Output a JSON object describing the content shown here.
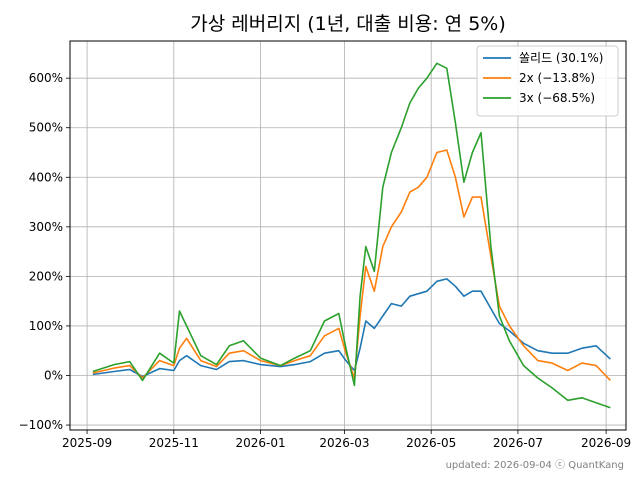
{
  "chart_data": {
    "type": "line",
    "title": "가상 레버리지 (1년, 대출 비용: 연 5%)",
    "xlabel": "",
    "ylabel": "",
    "footer": "updated: 2026-09-04 ⓒ QuantKang",
    "x_ticks": [
      "2025-09",
      "2025-11",
      "2026-01",
      "2026-03",
      "2026-05",
      "2026-07",
      "2026-09"
    ],
    "y_ticks": [
      "−100%",
      "0%",
      "100%",
      "200%",
      "300%",
      "400%",
      "500%",
      "600%"
    ],
    "y_tick_values": [
      -100,
      0,
      100,
      200,
      300,
      400,
      500,
      600
    ],
    "xlim": [
      "2025-08-20",
      "2026-09-15"
    ],
    "ylim": [
      -110,
      675
    ],
    "grid": true,
    "legend_position": "top-right",
    "series": [
      {
        "name": "쏠리드 (30.1%)",
        "color": "#1f77b4",
        "points": [
          [
            "2025-09-05",
            2
          ],
          [
            "2025-09-20",
            8
          ],
          [
            "2025-10-01",
            12
          ],
          [
            "2025-10-10",
            -2
          ],
          [
            "2025-10-22",
            14
          ],
          [
            "2025-11-01",
            10
          ],
          [
            "2025-11-05",
            30
          ],
          [
            "2025-11-10",
            40
          ],
          [
            "2025-11-20",
            20
          ],
          [
            "2025-12-01",
            12
          ],
          [
            "2025-12-10",
            28
          ],
          [
            "2025-12-20",
            30
          ],
          [
            "2026-01-01",
            22
          ],
          [
            "2026-01-15",
            18
          ],
          [
            "2026-01-25",
            22
          ],
          [
            "2026-02-05",
            28
          ],
          [
            "2026-02-15",
            45
          ],
          [
            "2026-02-25",
            50
          ],
          [
            "2026-03-02",
            30
          ],
          [
            "2026-03-08",
            10
          ],
          [
            "2026-03-12",
            55
          ],
          [
            "2026-03-16",
            110
          ],
          [
            "2026-03-22",
            95
          ],
          [
            "2026-03-28",
            120
          ],
          [
            "2026-04-03",
            145
          ],
          [
            "2026-04-10",
            140
          ],
          [
            "2026-04-16",
            160
          ],
          [
            "2026-04-22",
            165
          ],
          [
            "2026-04-28",
            170
          ],
          [
            "2026-05-05",
            190
          ],
          [
            "2026-05-12",
            195
          ],
          [
            "2026-05-18",
            180
          ],
          [
            "2026-05-24",
            160
          ],
          [
            "2026-05-30",
            170
          ],
          [
            "2026-06-05",
            170
          ],
          [
            "2026-06-12",
            135
          ],
          [
            "2026-06-18",
            105
          ],
          [
            "2026-06-25",
            90
          ],
          [
            "2026-07-05",
            65
          ],
          [
            "2026-07-15",
            50
          ],
          [
            "2026-07-25",
            45
          ],
          [
            "2026-08-05",
            45
          ],
          [
            "2026-08-15",
            55
          ],
          [
            "2026-08-25",
            60
          ],
          [
            "2026-09-04",
            33
          ]
        ]
      },
      {
        "name": "2x (−13.8%)",
        "color": "#ff7f0e",
        "points": [
          [
            "2025-09-05",
            5
          ],
          [
            "2025-09-20",
            15
          ],
          [
            "2025-10-01",
            20
          ],
          [
            "2025-10-10",
            -5
          ],
          [
            "2025-10-22",
            30
          ],
          [
            "2025-11-01",
            20
          ],
          [
            "2025-11-05",
            55
          ],
          [
            "2025-11-10",
            75
          ],
          [
            "2025-11-20",
            30
          ],
          [
            "2025-12-01",
            18
          ],
          [
            "2025-12-10",
            45
          ],
          [
            "2025-12-20",
            50
          ],
          [
            "2026-01-01",
            30
          ],
          [
            "2026-01-15",
            20
          ],
          [
            "2026-01-25",
            30
          ],
          [
            "2026-02-05",
            40
          ],
          [
            "2026-02-15",
            80
          ],
          [
            "2026-02-25",
            95
          ],
          [
            "2026-03-02",
            45
          ],
          [
            "2026-03-08",
            -5
          ],
          [
            "2026-03-12",
            120
          ],
          [
            "2026-03-16",
            220
          ],
          [
            "2026-03-22",
            170
          ],
          [
            "2026-03-28",
            260
          ],
          [
            "2026-04-03",
            300
          ],
          [
            "2026-04-10",
            330
          ],
          [
            "2026-04-16",
            370
          ],
          [
            "2026-04-22",
            380
          ],
          [
            "2026-04-28",
            400
          ],
          [
            "2026-05-05",
            450
          ],
          [
            "2026-05-12",
            455
          ],
          [
            "2026-05-18",
            400
          ],
          [
            "2026-05-24",
            320
          ],
          [
            "2026-05-30",
            360
          ],
          [
            "2026-06-05",
            360
          ],
          [
            "2026-06-12",
            240
          ],
          [
            "2026-06-18",
            140
          ],
          [
            "2026-06-25",
            100
          ],
          [
            "2026-07-05",
            60
          ],
          [
            "2026-07-15",
            30
          ],
          [
            "2026-07-25",
            25
          ],
          [
            "2026-08-05",
            10
          ],
          [
            "2026-08-15",
            25
          ],
          [
            "2026-08-25",
            20
          ],
          [
            "2026-09-04",
            -10
          ]
        ]
      },
      {
        "name": "3x (−68.5%)",
        "color": "#2ca02c",
        "points": [
          [
            "2025-09-05",
            8
          ],
          [
            "2025-09-20",
            22
          ],
          [
            "2025-10-01",
            28
          ],
          [
            "2025-10-10",
            -10
          ],
          [
            "2025-10-22",
            45
          ],
          [
            "2025-11-01",
            25
          ],
          [
            "2025-11-05",
            130
          ],
          [
            "2025-11-10",
            100
          ],
          [
            "2025-11-20",
            40
          ],
          [
            "2025-12-01",
            22
          ],
          [
            "2025-12-10",
            60
          ],
          [
            "2025-12-20",
            70
          ],
          [
            "2026-01-01",
            35
          ],
          [
            "2026-01-15",
            20
          ],
          [
            "2026-01-25",
            35
          ],
          [
            "2026-02-05",
            50
          ],
          [
            "2026-02-15",
            110
          ],
          [
            "2026-02-25",
            125
          ],
          [
            "2026-03-02",
            55
          ],
          [
            "2026-03-08",
            -20
          ],
          [
            "2026-03-12",
            160
          ],
          [
            "2026-03-16",
            260
          ],
          [
            "2026-03-22",
            210
          ],
          [
            "2026-03-28",
            380
          ],
          [
            "2026-04-03",
            450
          ],
          [
            "2026-04-10",
            500
          ],
          [
            "2026-04-16",
            550
          ],
          [
            "2026-04-22",
            580
          ],
          [
            "2026-04-28",
            600
          ],
          [
            "2026-05-05",
            630
          ],
          [
            "2026-05-12",
            620
          ],
          [
            "2026-05-18",
            510
          ],
          [
            "2026-05-24",
            390
          ],
          [
            "2026-05-30",
            450
          ],
          [
            "2026-06-05",
            490
          ],
          [
            "2026-06-12",
            260
          ],
          [
            "2026-06-18",
            120
          ],
          [
            "2026-06-25",
            70
          ],
          [
            "2026-07-05",
            20
          ],
          [
            "2026-07-15",
            -5
          ],
          [
            "2026-07-25",
            -25
          ],
          [
            "2026-08-05",
            -50
          ],
          [
            "2026-08-15",
            -45
          ],
          [
            "2026-08-25",
            -55
          ],
          [
            "2026-09-04",
            -65
          ]
        ]
      }
    ]
  }
}
